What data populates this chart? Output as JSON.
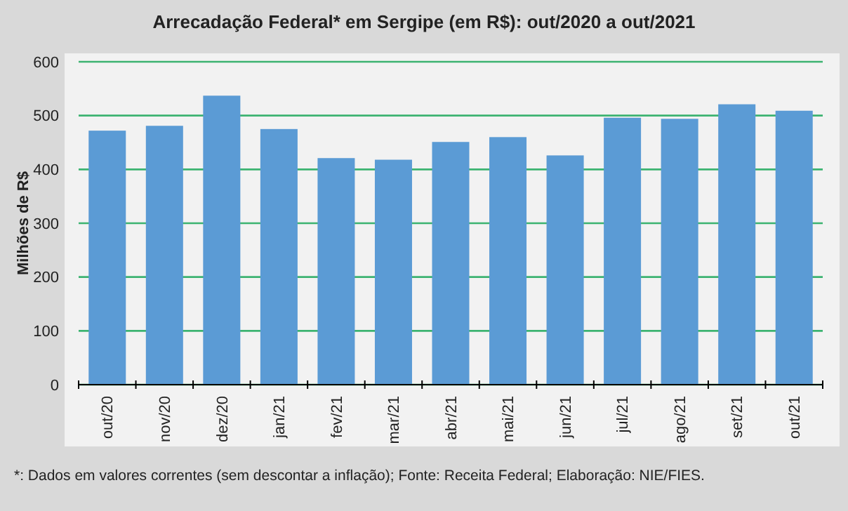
{
  "chart_data": {
    "type": "bar",
    "title": "Arrecadação Federal* em Sergipe (em R$): out/2020 a out/2021",
    "ylabel": "Milhões de R$",
    "categories": [
      "out/20",
      "nov/20",
      "dez/20",
      "jan/21",
      "fev/21",
      "mar/21",
      "abr/21",
      "mai/21",
      "jun/21",
      "jul/21",
      "ago/21",
      "set/21",
      "out/21"
    ],
    "values": [
      472,
      481,
      537,
      475,
      421,
      418,
      451,
      460,
      426,
      496,
      494,
      521,
      509
    ],
    "color": "#5b9bd5",
    "ylim": [
      0,
      600
    ],
    "yticks": [
      0,
      100,
      200,
      300,
      400,
      500,
      600
    ],
    "grid": "y",
    "annotations": [
      "*: Dados em valores correntes (sem descontar a inflação); Fonte: Receita Federal; Elaboração: NIE/FIES."
    ]
  }
}
